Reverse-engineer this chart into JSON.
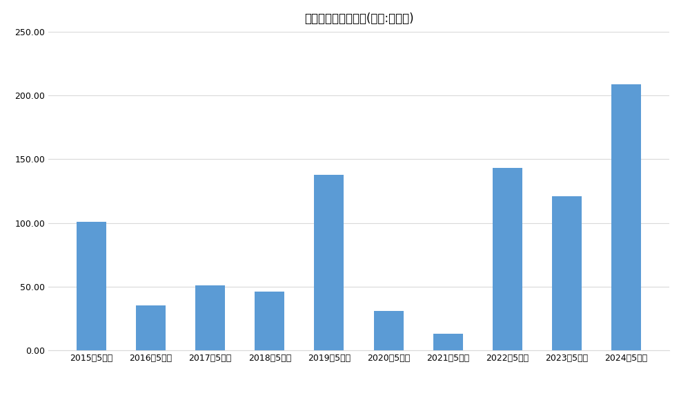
{
  "title": "ケイブの研究開発費(単位:百万円)",
  "categories": [
    "2015年5月期",
    "2016年5月期",
    "2017年5月期",
    "2018年5月期",
    "2019年5月期",
    "2020年5月期",
    "2021年5月期",
    "2022年5月期",
    "2023年5月期",
    "2024年5月期"
  ],
  "values": [
    101,
    35,
    51,
    46,
    138,
    31,
    13,
    143,
    121,
    209
  ],
  "bar_color": "#5B9BD5",
  "ylim": [
    0,
    250
  ],
  "yticks": [
    0.0,
    50.0,
    100.0,
    150.0,
    200.0,
    250.0
  ],
  "background_color": "#FFFFFF",
  "grid_color": "#D9D9D9",
  "title_fontsize": 12,
  "tick_fontsize": 9
}
